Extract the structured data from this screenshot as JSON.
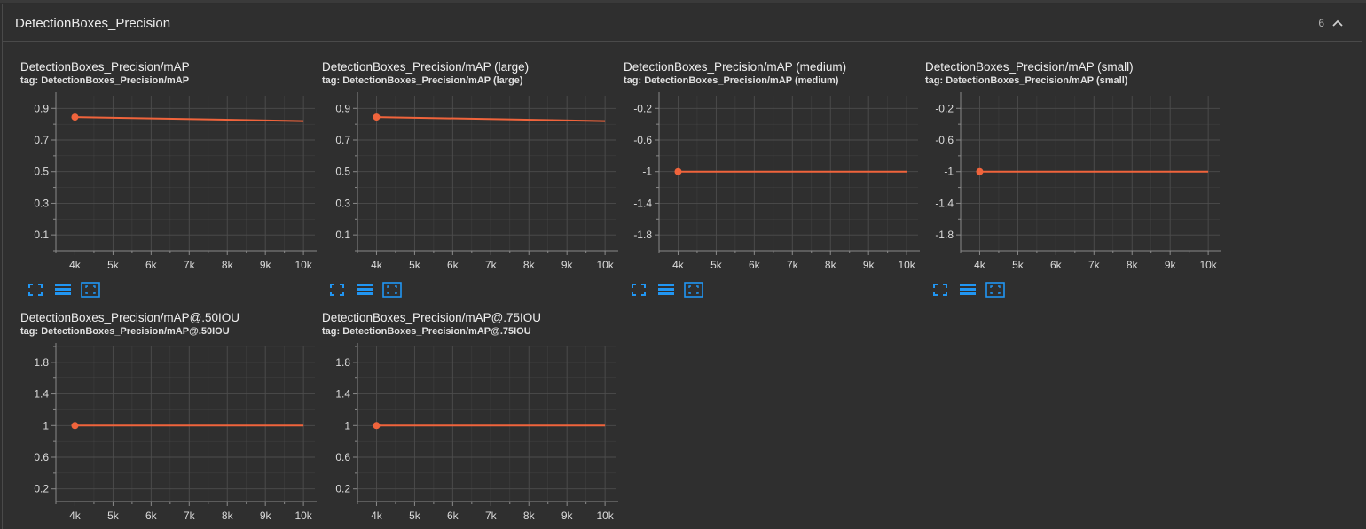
{
  "section": {
    "title": "DetectionBoxes_Precision",
    "count": "6",
    "collapse_icon": "chevron-up-icon"
  },
  "colors": {
    "line": "#f0643c",
    "grid": "#4d4d4d",
    "axis": "#8a8a8a",
    "icon": "#2196f3"
  },
  "toolbar_icons": [
    "fullscreen-icon",
    "list-icon",
    "fit-domain-icon"
  ],
  "cards": [
    {
      "title": "DetectionBoxes_Precision/mAP",
      "tag": "tag: DetectionBoxes_Precision/mAP"
    },
    {
      "title": "DetectionBoxes_Precision/mAP (large)",
      "tag": "tag: DetectionBoxes_Precision/mAP (large)"
    },
    {
      "title": "DetectionBoxes_Precision/mAP (medium)",
      "tag": "tag: DetectionBoxes_Precision/mAP (medium)"
    },
    {
      "title": "DetectionBoxes_Precision/mAP (small)",
      "tag": "tag: DetectionBoxes_Precision/mAP (small)"
    },
    {
      "title": "DetectionBoxes_Precision/mAP@.50IOU",
      "tag": "tag: DetectionBoxes_Precision/mAP@.50IOU"
    },
    {
      "title": "DetectionBoxes_Precision/mAP@.75IOU",
      "tag": "tag: DetectionBoxes_Precision/mAP@.75IOU"
    }
  ],
  "chart_data": [
    {
      "type": "line",
      "x": [
        4000,
        10000
      ],
      "y": [
        0.845,
        0.82
      ],
      "xlim": [
        3500,
        10300
      ],
      "ylim": [
        0.0,
        0.98
      ],
      "xticks": [
        4000,
        5000,
        6000,
        7000,
        8000,
        9000,
        10000
      ],
      "xtick_labels": [
        "4k",
        "5k",
        "6k",
        "7k",
        "8k",
        "9k",
        "10k"
      ],
      "yticks": [
        0.1,
        0.3,
        0.5,
        0.7,
        0.9
      ],
      "ytick_labels": [
        "0.1",
        "0.3",
        "0.5",
        "0.7",
        "0.9"
      ],
      "grid": true
    },
    {
      "type": "line",
      "x": [
        4000,
        10000
      ],
      "y": [
        0.845,
        0.82
      ],
      "xlim": [
        3500,
        10300
      ],
      "ylim": [
        0.0,
        0.98
      ],
      "xticks": [
        4000,
        5000,
        6000,
        7000,
        8000,
        9000,
        10000
      ],
      "xtick_labels": [
        "4k",
        "5k",
        "6k",
        "7k",
        "8k",
        "9k",
        "10k"
      ],
      "yticks": [
        0.1,
        0.3,
        0.5,
        0.7,
        0.9
      ],
      "ytick_labels": [
        "0.1",
        "0.3",
        "0.5",
        "0.7",
        "0.9"
      ],
      "grid": true
    },
    {
      "type": "line",
      "x": [
        4000,
        10000
      ],
      "y": [
        -1,
        -1
      ],
      "xlim": [
        3500,
        10300
      ],
      "ylim": [
        -2.0,
        -0.04
      ],
      "xticks": [
        4000,
        5000,
        6000,
        7000,
        8000,
        9000,
        10000
      ],
      "xtick_labels": [
        "4k",
        "5k",
        "6k",
        "7k",
        "8k",
        "9k",
        "10k"
      ],
      "yticks": [
        -1.8,
        -1.4,
        -1,
        -0.6,
        -0.2
      ],
      "ytick_labels": [
        "-1.8",
        "-1.4",
        "-1",
        "-0.6",
        "-0.2"
      ],
      "grid": true
    },
    {
      "type": "line",
      "x": [
        4000,
        10000
      ],
      "y": [
        -1,
        -1
      ],
      "xlim": [
        3500,
        10300
      ],
      "ylim": [
        -2.0,
        -0.04
      ],
      "xticks": [
        4000,
        5000,
        6000,
        7000,
        8000,
        9000,
        10000
      ],
      "xtick_labels": [
        "4k",
        "5k",
        "6k",
        "7k",
        "8k",
        "9k",
        "10k"
      ],
      "yticks": [
        -1.8,
        -1.4,
        -1,
        -0.6,
        -0.2
      ],
      "ytick_labels": [
        "-1.8",
        "-1.4",
        "-1",
        "-0.6",
        "-0.2"
      ],
      "grid": true
    },
    {
      "type": "line",
      "x": [
        4000,
        10000
      ],
      "y": [
        1,
        1
      ],
      "xlim": [
        3500,
        10300
      ],
      "ylim": [
        0.04,
        2.0
      ],
      "xticks": [
        4000,
        5000,
        6000,
        7000,
        8000,
        9000,
        10000
      ],
      "xtick_labels": [
        "4k",
        "5k",
        "6k",
        "7k",
        "8k",
        "9k",
        "10k"
      ],
      "yticks": [
        0.2,
        0.6,
        1,
        1.4,
        1.8
      ],
      "ytick_labels": [
        "0.2",
        "0.6",
        "1",
        "1.4",
        "1.8"
      ],
      "grid": true
    },
    {
      "type": "line",
      "x": [
        4000,
        10000
      ],
      "y": [
        1,
        1
      ],
      "xlim": [
        3500,
        10300
      ],
      "ylim": [
        0.04,
        2.0
      ],
      "xticks": [
        4000,
        5000,
        6000,
        7000,
        8000,
        9000,
        10000
      ],
      "xtick_labels": [
        "4k",
        "5k",
        "6k",
        "7k",
        "8k",
        "9k",
        "10k"
      ],
      "yticks": [
        0.2,
        0.6,
        1,
        1.4,
        1.8
      ],
      "ytick_labels": [
        "0.2",
        "0.6",
        "1",
        "1.4",
        "1.8"
      ],
      "grid": true
    }
  ]
}
